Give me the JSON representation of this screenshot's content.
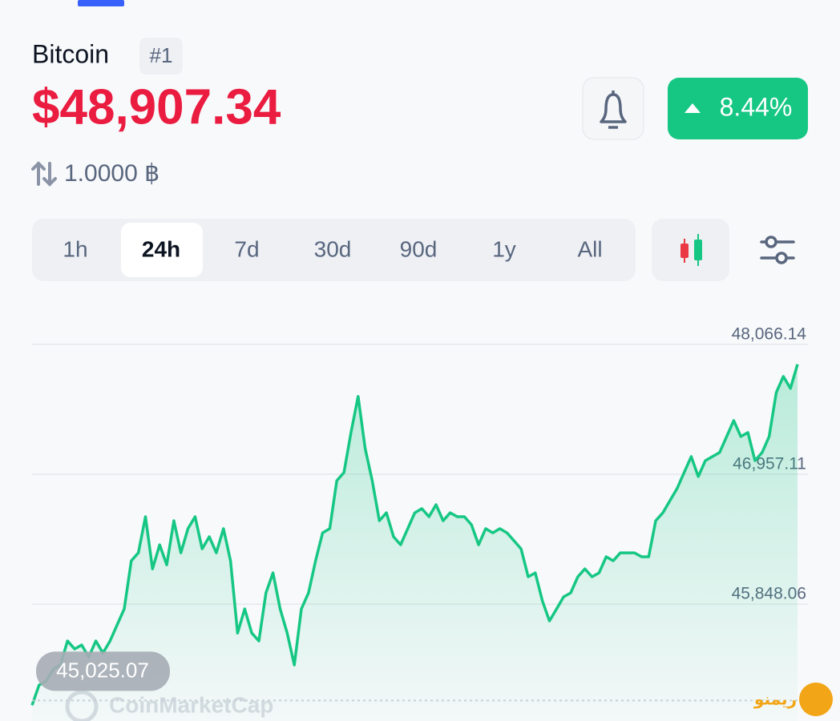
{
  "header": {
    "name": "Bitcoin",
    "rank": "#1",
    "price": "$48,907.34",
    "change": "8.44%",
    "amount": "1.0000 ฿"
  },
  "timeframes": [
    "1h",
    "24h",
    "7d",
    "30d",
    "90d",
    "1y",
    "All"
  ],
  "chart_data": {
    "type": "line",
    "color": "#16c784",
    "values": [
      44985,
      45157,
      45191,
      45294,
      45328,
      45533,
      45465,
      45499,
      45396,
      45533,
      45430,
      45533,
      45670,
      45807,
      46218,
      46286,
      46594,
      46149,
      46355,
      46183,
      46560,
      46286,
      46492,
      46594,
      46320,
      46423,
      46286,
      46492,
      46218,
      45601,
      45807,
      45601,
      45533,
      45944,
      46115,
      45807,
      45601,
      45328,
      45807,
      45944,
      46218,
      46457,
      46492,
      46902,
      46971,
      47313,
      47621,
      47176,
      46902,
      46560,
      46628,
      46423,
      46355,
      46492,
      46628,
      46663,
      46594,
      46697,
      46560,
      46628,
      46594,
      46594,
      46526,
      46355,
      46492,
      46457,
      46492,
      46457,
      46389,
      46320,
      46081,
      46115,
      45875,
      45704,
      45807,
      45910,
      45944,
      46081,
      46149,
      46081,
      46115,
      46252,
      46218,
      46286,
      46286,
      46286,
      46252,
      46252,
      46560,
      46628,
      46731,
      46834,
      46971,
      47108,
      46937,
      47073,
      47108,
      47142,
      47279,
      47416,
      47279,
      47313,
      47073,
      47142,
      47279,
      47655,
      47792,
      47690,
      47895
    ],
    "ylim": [
      44850,
      48400
    ],
    "yticks": [
      {
        "value": 48066.14,
        "label": "48,066.14"
      },
      {
        "value": 46957.11,
        "label": "46,957.11"
      },
      {
        "value": 45848.06,
        "label": "45,848.06"
      }
    ],
    "grid": true,
    "annotations": [
      {
        "value": 45025.07,
        "label": "45,025.07"
      }
    ],
    "watermark": "CoinMarketCap",
    "logo_text": "ریمنو"
  }
}
